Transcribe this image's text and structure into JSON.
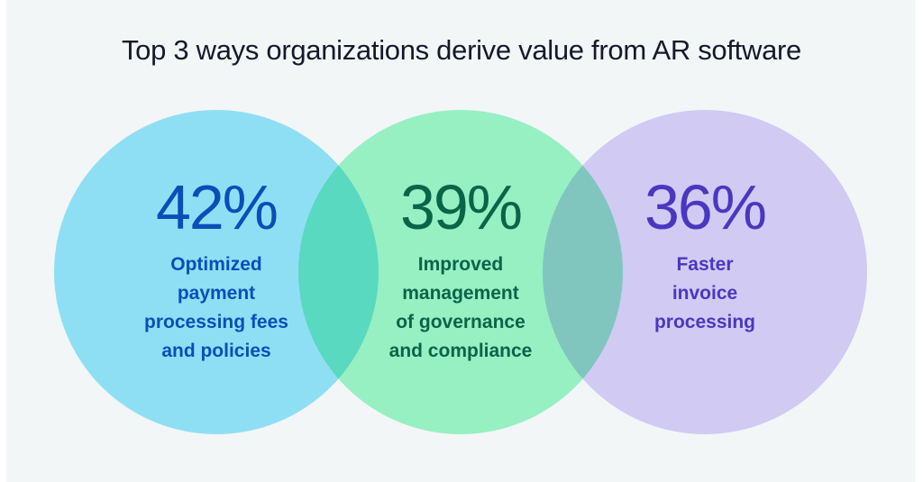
{
  "title": "Top 3 ways organizations derive value from AR software",
  "colors": {
    "background": "#f3f6f7",
    "blue_circle": "#96e8fc",
    "green_circle": "#9ef9c9",
    "purple_circle": "#dcd2fb",
    "blue_text": "#0a4eb8",
    "green_text": "#0a6447",
    "purple_text": "#4a37c0"
  },
  "items": [
    {
      "value": "42%",
      "label_lines": [
        "Optimized",
        "payment",
        "processing fees",
        "and policies"
      ]
    },
    {
      "value": "39%",
      "label_lines": [
        "Improved",
        "management",
        "of governance",
        "and compliance"
      ]
    },
    {
      "value": "36%",
      "label_lines": [
        "Faster",
        "invoice",
        "processing"
      ]
    }
  ]
}
